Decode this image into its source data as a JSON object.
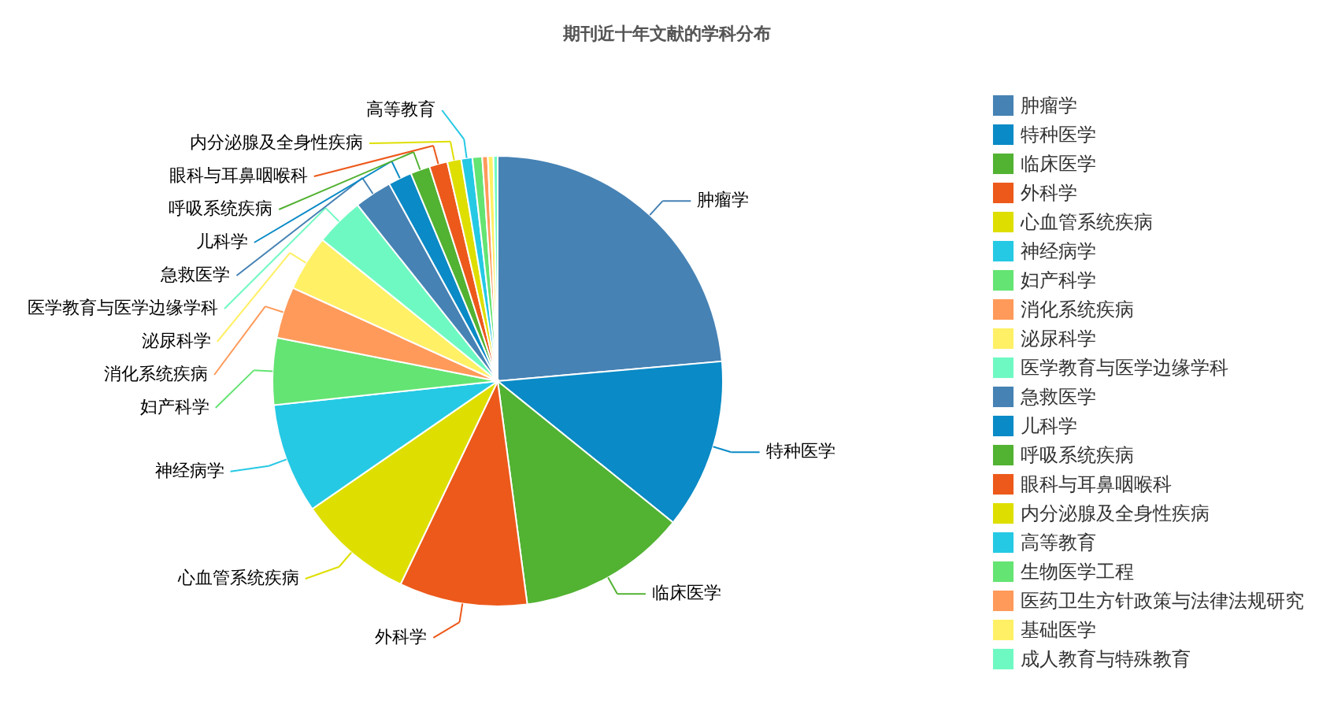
{
  "chart_data": {
    "type": "pie",
    "title": "期刊近十年文献的学科分布",
    "categories": [
      "肿瘤学",
      "特种医学",
      "临床医学",
      "外科学",
      "心血管系统疾病",
      "神经病学",
      "妇产科学",
      "消化系统疾病",
      "泌尿科学",
      "医学教育与医学边缘学科",
      "急救医学",
      "儿科学",
      "呼吸系统疾病",
      "眼科与耳鼻咽喉科",
      "内分泌腺及全身性疾病",
      "高等教育",
      "生物医学工程",
      "医药卫生方针政策与法律法规研究",
      "基础医学",
      "成人教育与特殊教育"
    ],
    "values": [
      23.6,
      12.2,
      12.1,
      9.2,
      8.3,
      7.9,
      4.8,
      3.7,
      4.0,
      3.5,
      2.7,
      1.7,
      1.4,
      1.3,
      1.0,
      0.8,
      0.7,
      0.4,
      0.4,
      0.3
    ],
    "colors": [
      "#4682b4",
      "#0a8ac6",
      "#52b232",
      "#ec591b",
      "#dedf00",
      "#25c9e4",
      "#64e472",
      "#ff9a5a",
      "#fff066",
      "#6ff9c2",
      "#4682b4",
      "#0a8ac6",
      "#52b232",
      "#ec591b",
      "#dedf00",
      "#25c9e4",
      "#64e472",
      "#ff9a5a",
      "#fff066",
      "#6ff9c2"
    ],
    "legend": "right"
  }
}
